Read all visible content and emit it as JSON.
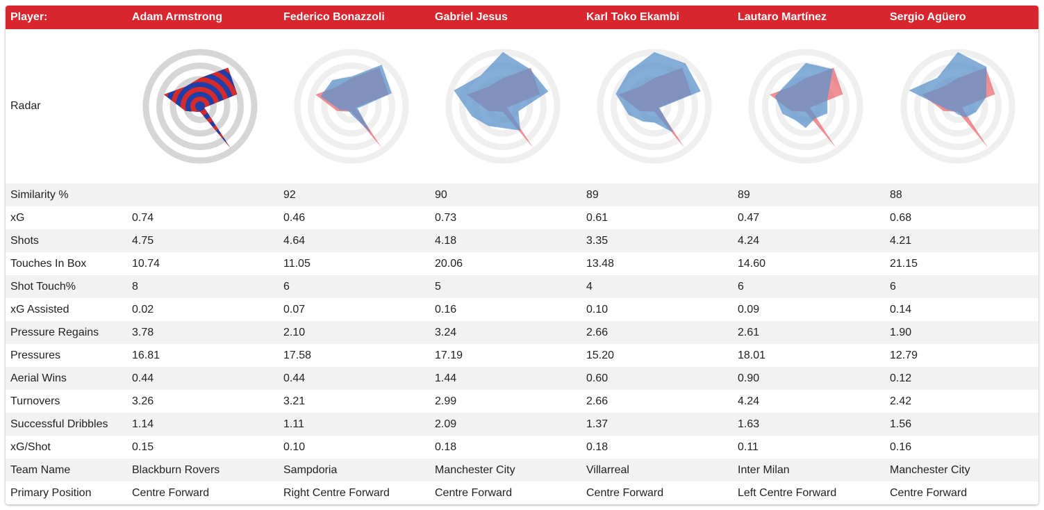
{
  "colors": {
    "header_bg": "#d9262e",
    "header_text": "#ffffff",
    "row_alt": "#f2f2f2",
    "compare_fill": "#5b93c9",
    "base_fill": "#e8636b",
    "base_stripe_red": "#d62b2b",
    "base_stripe_blue": "#1f3fa8",
    "ring_gray": "#e0e0e0"
  },
  "header": {
    "label": "Player:",
    "players": [
      "Adam Armstrong",
      "Federico Bonazzoli",
      "Gabriel Jesus",
      "Karl Toko Ekambi",
      "Lautaro Martínez",
      "Sergio Agüero"
    ]
  },
  "radar": {
    "label": "Radar",
    "base_index": 0
  },
  "rows": [
    {
      "label": "Similarity %",
      "values": [
        "",
        "92",
        "90",
        "89",
        "89",
        "88"
      ]
    },
    {
      "label": "xG",
      "values": [
        "0.74",
        "0.46",
        "0.73",
        "0.61",
        "0.47",
        "0.68"
      ]
    },
    {
      "label": "Shots",
      "values": [
        "4.75",
        "4.64",
        "4.18",
        "3.35",
        "4.24",
        "4.21"
      ]
    },
    {
      "label": "Touches In Box",
      "values": [
        "10.74",
        "11.05",
        "20.06",
        "13.48",
        "14.60",
        "21.15"
      ]
    },
    {
      "label": "Shot Touch%",
      "values": [
        "8",
        "6",
        "5",
        "4",
        "6",
        "6"
      ]
    },
    {
      "label": "xG Assisted",
      "values": [
        "0.02",
        "0.07",
        "0.16",
        "0.10",
        "0.09",
        "0.14"
      ]
    },
    {
      "label": "Pressure Regains",
      "values": [
        "3.78",
        "2.10",
        "3.24",
        "2.66",
        "2.61",
        "1.90"
      ]
    },
    {
      "label": "Pressures",
      "values": [
        "16.81",
        "17.58",
        "17.19",
        "15.20",
        "18.01",
        "12.79"
      ]
    },
    {
      "label": "Aerial Wins",
      "values": [
        "0.44",
        "0.44",
        "1.44",
        "0.60",
        "0.90",
        "0.12"
      ]
    },
    {
      "label": "Turnovers",
      "values": [
        "3.26",
        "3.21",
        "2.99",
        "2.66",
        "4.24",
        "2.42"
      ]
    },
    {
      "label": "Successful Dribbles",
      "values": [
        "1.14",
        "1.11",
        "2.09",
        "1.37",
        "1.63",
        "1.56"
      ]
    },
    {
      "label": "xG/Shot",
      "values": [
        "0.15",
        "0.10",
        "0.18",
        "0.18",
        "0.11",
        "0.16"
      ]
    },
    {
      "label": "Team Name",
      "values": [
        "Blackburn Rovers",
        "Sampdoria",
        "Manchester City",
        "Villarreal",
        "Inter Milan",
        "Manchester City"
      ]
    },
    {
      "label": "Primary Position",
      "values": [
        "Centre Forward",
        "Right Centre Forward",
        "Centre Forward",
        "Centre Forward",
        "Left Centre Forward",
        "Centre Forward"
      ]
    }
  ]
}
